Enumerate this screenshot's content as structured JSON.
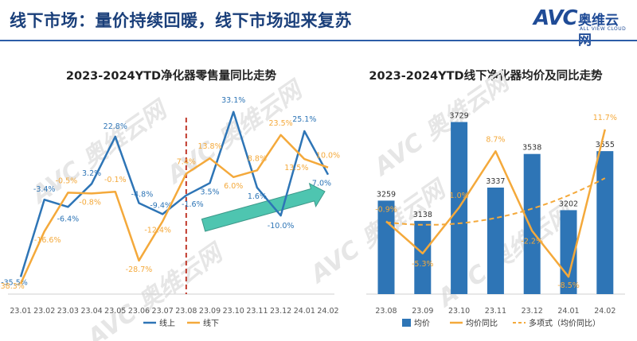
{
  "header": {
    "title": "线下市场：量价持续回暖，线下市场迎来复苏",
    "logo_main": "AVC",
    "logo_cn": "奥维云网",
    "logo_en": "ALL VIEW CLOUD"
  },
  "colors": {
    "blue": "#2e75b6",
    "orange": "#f4a93b",
    "header": "#1a3f7a",
    "divider": "#c0392b",
    "arrow": "#3bbfa8"
  },
  "chart_data": [
    {
      "type": "line",
      "title": "2023-2024YTD净化器零售量同比走势",
      "x": [
        "23.01",
        "23.02",
        "23.03",
        "23.04",
        "23.05",
        "23.06",
        "23.07",
        "23.08",
        "23.09",
        "23.10",
        "23.11",
        "23.12",
        "24.01",
        "24.02"
      ],
      "series": [
        {
          "name": "线上",
          "color": "#2e75b6",
          "values": [
            -35.5,
            -3.4,
            -6.4,
            3.2,
            22.8,
            -4.8,
            -9.4,
            -1.6,
            3.5,
            33.1,
            1.6,
            -10.0,
            25.1,
            7.0
          ],
          "labels": [
            "-35.5%",
            "-3.4%",
            "-6.4%",
            "3.2%",
            "22.8%",
            "-4.8%",
            "-9.4%",
            "-1.6%",
            "3.5%",
            "33.1%",
            "1.6%",
            "-10.0%",
            "25.1%",
            "7.0%"
          ]
        },
        {
          "name": "线下",
          "color": "#f4a93b",
          "values": [
            -38.3,
            -16.6,
            -0.5,
            -0.8,
            -0.1,
            -28.7,
            -12.4,
            7.4,
            13.8,
            6.0,
            8.8,
            23.5,
            13.5,
            10.0
          ],
          "labels": [
            "-38.3%",
            "-16.6%",
            "-0.5%",
            "-0.8%",
            "-0.1%",
            "-28.7%",
            "-12.4%",
            "7.4%",
            "13.8%",
            "6.0%",
            "8.8%",
            "23.5%",
            "13.5%",
            "10.0%"
          ]
        }
      ],
      "legend": "bottom",
      "divider_after": "23.08"
    },
    {
      "type": "bar",
      "title": "2023-2024YTD线下净化器均价及同比走势",
      "categories": [
        "23.08",
        "23.09",
        "23.10",
        "23.11",
        "23.12",
        "24.01",
        "24.02"
      ],
      "series": [
        {
          "name": "均价",
          "type": "bar",
          "color": "#2e75b6",
          "values": [
            3259,
            3138,
            3729,
            3337,
            3538,
            3202,
            3555
          ],
          "labels": [
            "3259",
            "3138",
            "3729",
            "3337",
            "3538",
            "3202",
            "3555"
          ]
        },
        {
          "name": "均价同比",
          "type": "line",
          "color": "#f4a93b",
          "values": [
            -0.9,
            -5.3,
            1.0,
            8.7,
            -2.2,
            -8.5,
            11.7
          ],
          "labels": [
            "-0.9%",
            "-5.3%",
            "1.0%",
            "8.7%",
            "-2.2%",
            "-8.5%",
            "11.7%"
          ]
        },
        {
          "name": "多项式（均价同比）",
          "type": "trend",
          "color": "#f4a93b"
        }
      ],
      "legend": "bottom"
    }
  ]
}
